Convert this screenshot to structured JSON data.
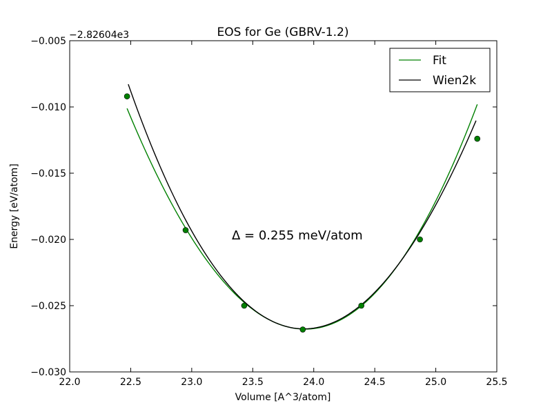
{
  "chart_data": {
    "type": "line",
    "title": "EOS for Ge (GBRV-1.2)",
    "xlabel": "Volume [A^3/atom]",
    "ylabel": "Energy [eV/atom]",
    "y_offset_label": "−2.82604e3",
    "xlim": [
      22.0,
      25.5
    ],
    "ylim": [
      -0.03,
      -0.005
    ],
    "x_ticks": [
      22.0,
      22.5,
      23.0,
      23.5,
      24.0,
      24.5,
      25.0,
      25.5
    ],
    "x_tick_labels": [
      "22.0",
      "22.5",
      "23.0",
      "23.5",
      "24.0",
      "24.5",
      "25.0",
      "25.5"
    ],
    "y_ticks": [
      -0.03,
      -0.025,
      -0.02,
      -0.015,
      -0.01,
      -0.005
    ],
    "y_tick_labels": [
      "−0.030",
      "−0.025",
      "−0.020",
      "−0.015",
      "−0.010",
      "−0.005"
    ],
    "grid": false,
    "legend_position": "top-right",
    "annotation": "Δ = 0.255 meV/atom",
    "points": {
      "color": "#008000",
      "x": [
        22.47,
        22.95,
        23.43,
        23.91,
        24.39,
        24.87,
        25.34
      ],
      "y": [
        -0.0092,
        -0.0193,
        -0.025,
        -0.0268,
        -0.025,
        -0.02,
        -0.0124
      ]
    },
    "series": [
      {
        "name": "Fit",
        "color": "#008000",
        "x_range": [
          22.47,
          25.34
        ],
        "x_min": 23.93,
        "y_min": -0.02677,
        "curvature": 0.00818,
        "cubic": 0.00025
      },
      {
        "name": "Wien2k",
        "color": "#000000",
        "x_range": [
          22.48,
          25.33
        ],
        "x_min": 23.92,
        "y_min": -0.02675,
        "curvature": 0.0084,
        "cubic": -0.00035
      }
    ]
  }
}
